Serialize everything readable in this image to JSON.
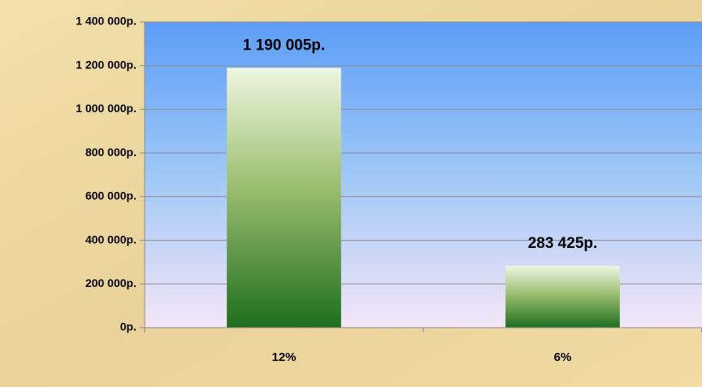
{
  "chart_data": {
    "type": "bar",
    "categories": [
      "12%",
      "6%"
    ],
    "values": [
      1190005,
      283425
    ],
    "value_labels": [
      "1 190 005р.",
      "283 425р."
    ],
    "color": "#1e6e1e",
    "ylim": [
      0,
      1400000
    ],
    "yticks": [
      {
        "value": 0,
        "label": "0р."
      },
      {
        "value": 200000,
        "label": "200 000р."
      },
      {
        "value": 400000,
        "label": "400 000р."
      },
      {
        "value": 600000,
        "label": "600 000р."
      },
      {
        "value": 800000,
        "label": "800 000р."
      },
      {
        "value": 1000000,
        "label": "1 000 000р."
      },
      {
        "value": 1200000,
        "label": "1 200 000р."
      },
      {
        "value": 1400000,
        "label": "1 400 000р."
      }
    ],
    "grid": true
  }
}
